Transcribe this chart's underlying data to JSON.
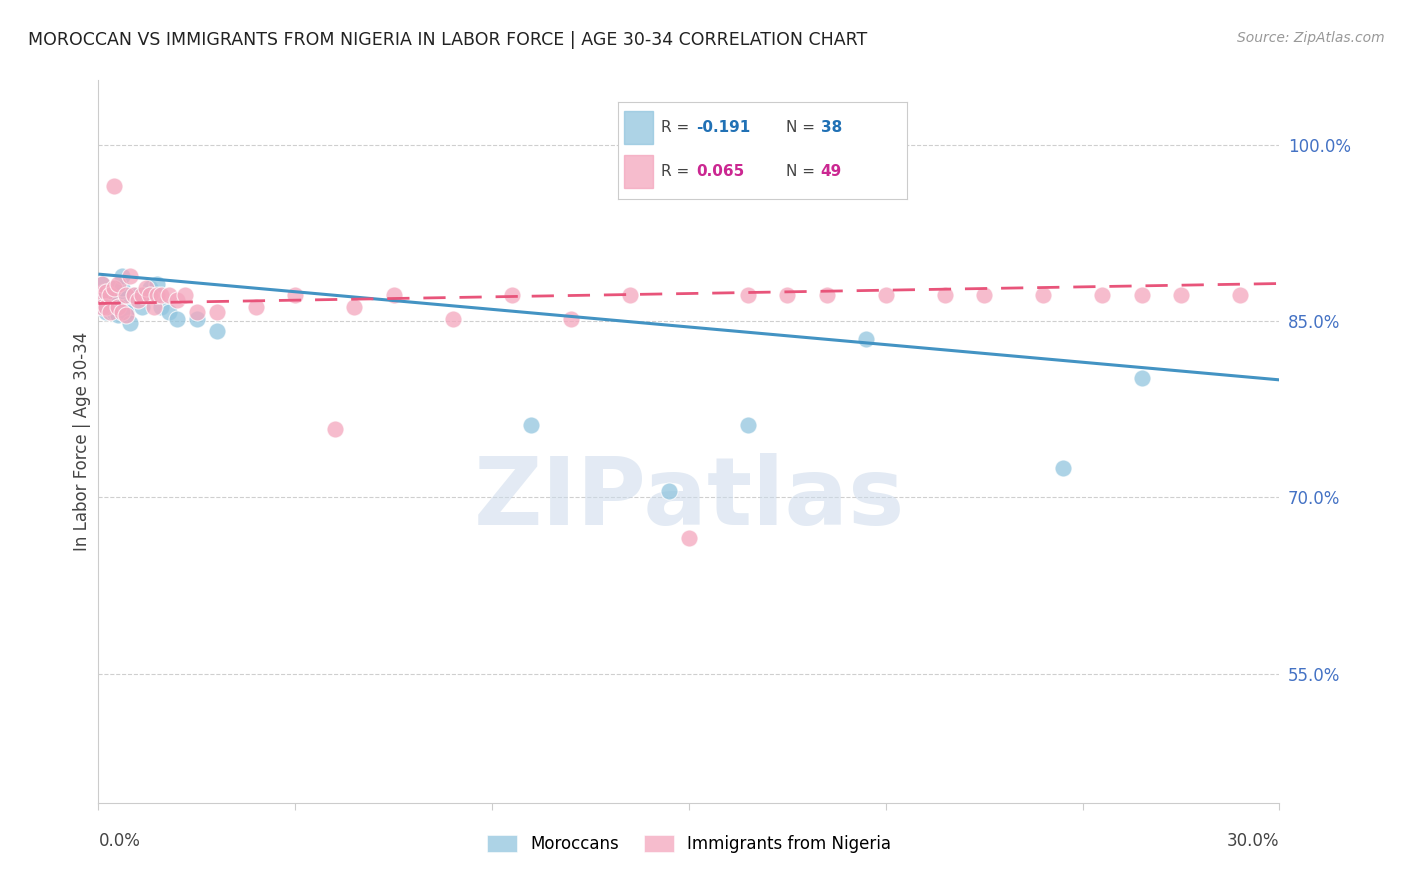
{
  "title": "MOROCCAN VS IMMIGRANTS FROM NIGERIA IN LABOR FORCE | AGE 30-34 CORRELATION CHART",
  "source": "Source: ZipAtlas.com",
  "ylabel": "In Labor Force | Age 30-34",
  "ytick_vals": [
    0.55,
    0.7,
    0.85,
    1.0
  ],
  "ytick_labels": [
    "55.0%",
    "70.0%",
    "85.0%",
    "100.0%"
  ],
  "xmin": 0.0,
  "xmax": 0.3,
  "ymin": 0.44,
  "ymax": 1.055,
  "legend_r_blue": "-0.191",
  "legend_n_blue": "38",
  "legend_r_pink": "0.065",
  "legend_n_pink": "49",
  "legend_label_blue": "Moroccans",
  "legend_label_pink": "Immigrants from Nigeria",
  "blue_color": "#92c5de",
  "pink_color": "#f4a6bd",
  "line_blue_color": "#4393c3",
  "line_pink_color": "#e8547a",
  "blue_scatter_x": [
    0.0005,
    0.001,
    0.001,
    0.001,
    0.0015,
    0.002,
    0.002,
    0.002,
    0.003,
    0.003,
    0.003,
    0.004,
    0.004,
    0.005,
    0.005,
    0.005,
    0.006,
    0.006,
    0.007,
    0.007,
    0.008,
    0.009,
    0.01,
    0.011,
    0.012,
    0.013,
    0.015,
    0.016,
    0.018,
    0.02,
    0.025,
    0.03,
    0.11,
    0.145,
    0.165,
    0.195,
    0.245,
    0.265
  ],
  "blue_scatter_y": [
    0.872,
    0.882,
    0.862,
    0.868,
    0.875,
    0.872,
    0.858,
    0.862,
    0.875,
    0.862,
    0.868,
    0.878,
    0.858,
    0.872,
    0.855,
    0.862,
    0.878,
    0.888,
    0.862,
    0.858,
    0.848,
    0.872,
    0.872,
    0.862,
    0.872,
    0.878,
    0.882,
    0.862,
    0.858,
    0.852,
    0.852,
    0.842,
    0.762,
    0.705,
    0.762,
    0.835,
    0.725,
    0.802
  ],
  "pink_scatter_x": [
    0.0005,
    0.001,
    0.001,
    0.002,
    0.002,
    0.003,
    0.003,
    0.004,
    0.004,
    0.005,
    0.005,
    0.006,
    0.007,
    0.007,
    0.008,
    0.009,
    0.01,
    0.011,
    0.012,
    0.013,
    0.014,
    0.015,
    0.016,
    0.018,
    0.02,
    0.022,
    0.025,
    0.03,
    0.04,
    0.05,
    0.06,
    0.065,
    0.075,
    0.09,
    0.105,
    0.12,
    0.135,
    0.15,
    0.165,
    0.175,
    0.185,
    0.2,
    0.215,
    0.225,
    0.24,
    0.255,
    0.265,
    0.275,
    0.29
  ],
  "pink_scatter_y": [
    0.872,
    0.882,
    0.862,
    0.875,
    0.862,
    0.872,
    0.858,
    0.878,
    0.965,
    0.882,
    0.862,
    0.858,
    0.872,
    0.855,
    0.888,
    0.872,
    0.868,
    0.872,
    0.878,
    0.872,
    0.862,
    0.872,
    0.872,
    0.872,
    0.868,
    0.872,
    0.858,
    0.858,
    0.862,
    0.872,
    0.758,
    0.862,
    0.872,
    0.852,
    0.872,
    0.852,
    0.872,
    0.665,
    0.872,
    0.872,
    0.872,
    0.872,
    0.872,
    0.872,
    0.872,
    0.872,
    0.872,
    0.872,
    0.872
  ],
  "blue_line_x0": 0.0,
  "blue_line_x1": 0.3,
  "blue_line_y0": 0.89,
  "blue_line_y1": 0.8,
  "pink_line_x0": 0.0,
  "pink_line_x1": 0.3,
  "pink_line_y0": 0.865,
  "pink_line_y1": 0.882,
  "watermark": "ZIPatlas",
  "background_color": "#ffffff",
  "grid_color": "#bbbbbb"
}
